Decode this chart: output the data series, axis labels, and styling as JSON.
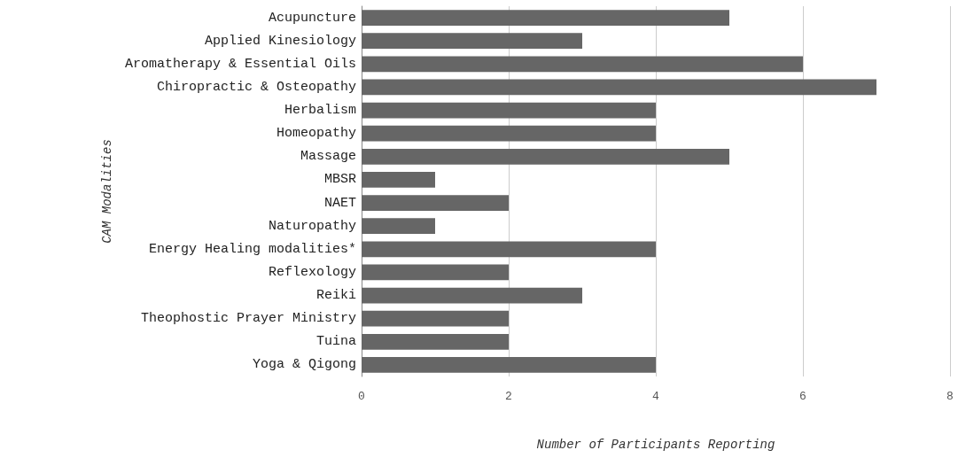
{
  "chart_data": {
    "type": "bar",
    "orientation": "horizontal",
    "xlabel": "Number of Participants Reporting",
    "ylabel": "CAM Modalities",
    "categories": [
      "Acupuncture",
      "Applied Kinesiology",
      "Aromatherapy & Essential Oils",
      "Chiropractic & Osteopathy",
      "Herbalism",
      "Homeopathy",
      "Massage",
      "MBSR",
      "NAET",
      "Naturopathy",
      "Energy Healing modalities*",
      "Reflexology",
      "Reiki",
      "Theophostic Prayer Ministry",
      "Tuina",
      "Yoga & Qigong"
    ],
    "values": [
      5,
      3,
      6,
      7,
      4,
      4,
      5,
      1,
      2,
      1,
      4,
      2,
      3,
      2,
      2,
      4
    ],
    "color": "#666666",
    "xlim": [
      0,
      8
    ],
    "xticks": [
      0,
      2,
      4,
      6,
      8
    ],
    "grid": "x"
  }
}
